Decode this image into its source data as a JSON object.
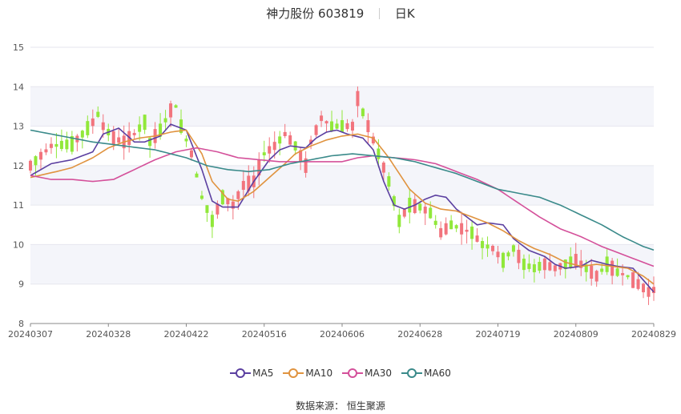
{
  "header": {
    "title": "神力股份 603819",
    "period": "日K"
  },
  "source": "数据来源： 恒生聚源",
  "colors": {
    "up": "#f2747d",
    "down": "#91e83a",
    "ma5": "#5b3fa0",
    "ma10": "#e0933f",
    "ma30": "#d4509a",
    "ma60": "#3a8a8a"
  },
  "chart_data": {
    "type": "candlestick",
    "ylim": [
      8,
      15
    ],
    "yticks": [
      8,
      9,
      10,
      11,
      12,
      13,
      14,
      15
    ],
    "xtick_labels": [
      "20240307",
      "20240328",
      "20240422",
      "20240516",
      "20240606",
      "20240628",
      "20240719",
      "20240809",
      "20240829"
    ],
    "xtick_index": [
      0,
      15,
      30,
      45,
      60,
      75,
      90,
      105,
      120
    ],
    "n": 121,
    "legend": [
      "MA5",
      "MA10",
      "MA30",
      "MA60"
    ],
    "series": [
      {
        "name": "MA5",
        "anchors": [
          [
            0,
            11.75
          ],
          [
            4,
            12.05
          ],
          [
            8,
            12.15
          ],
          [
            12,
            12.35
          ],
          [
            14,
            12.8
          ],
          [
            17,
            12.95
          ],
          [
            20,
            12.6
          ],
          [
            22,
            12.6
          ],
          [
            25,
            12.75
          ],
          [
            27,
            13.05
          ],
          [
            30,
            12.9
          ],
          [
            33,
            11.9
          ],
          [
            35,
            11.1
          ],
          [
            37,
            10.95
          ],
          [
            40,
            10.95
          ],
          [
            43,
            11.6
          ],
          [
            46,
            12.15
          ],
          [
            48,
            12.4
          ],
          [
            50,
            12.5
          ],
          [
            53,
            12.45
          ],
          [
            55,
            12.7
          ],
          [
            57,
            12.85
          ],
          [
            59,
            12.9
          ],
          [
            61,
            12.8
          ],
          [
            64,
            12.7
          ],
          [
            66,
            12.4
          ],
          [
            68,
            11.6
          ],
          [
            70,
            11.0
          ],
          [
            72,
            10.9
          ],
          [
            74,
            11.0
          ],
          [
            76,
            11.15
          ],
          [
            78,
            11.25
          ],
          [
            80,
            11.2
          ],
          [
            82,
            10.9
          ],
          [
            84,
            10.7
          ],
          [
            86,
            10.5
          ],
          [
            88,
            10.55
          ],
          [
            91,
            10.5
          ],
          [
            93,
            10.15
          ],
          [
            96,
            9.85
          ],
          [
            99,
            9.7
          ],
          [
            101,
            9.5
          ],
          [
            103,
            9.4
          ],
          [
            106,
            9.45
          ],
          [
            108,
            9.6
          ],
          [
            111,
            9.5
          ],
          [
            113,
            9.45
          ],
          [
            116,
            9.4
          ],
          [
            118,
            9.1
          ],
          [
            120,
            8.8
          ],
          [
            121,
            8.78
          ]
        ]
      },
      {
        "name": "MA10",
        "anchors": [
          [
            0,
            11.7
          ],
          [
            5,
            11.85
          ],
          [
            8,
            11.95
          ],
          [
            12,
            12.2
          ],
          [
            15,
            12.45
          ],
          [
            18,
            12.6
          ],
          [
            21,
            12.7
          ],
          [
            24,
            12.75
          ],
          [
            27,
            12.85
          ],
          [
            30,
            12.9
          ],
          [
            33,
            12.3
          ],
          [
            35,
            11.6
          ],
          [
            38,
            11.15
          ],
          [
            40,
            11.1
          ],
          [
            43,
            11.35
          ],
          [
            46,
            11.7
          ],
          [
            49,
            12.05
          ],
          [
            51,
            12.3
          ],
          [
            54,
            12.5
          ],
          [
            57,
            12.65
          ],
          [
            60,
            12.75
          ],
          [
            63,
            12.8
          ],
          [
            66,
            12.7
          ],
          [
            69,
            12.2
          ],
          [
            71,
            11.8
          ],
          [
            73,
            11.4
          ],
          [
            76,
            11.05
          ],
          [
            79,
            10.9
          ],
          [
            82,
            10.85
          ],
          [
            85,
            10.7
          ],
          [
            88,
            10.55
          ],
          [
            91,
            10.35
          ],
          [
            94,
            10.1
          ],
          [
            97,
            9.9
          ],
          [
            100,
            9.75
          ],
          [
            103,
            9.55
          ],
          [
            106,
            9.45
          ],
          [
            109,
            9.5
          ],
          [
            112,
            9.45
          ],
          [
            115,
            9.4
          ],
          [
            118,
            9.2
          ],
          [
            121,
            8.9
          ]
        ]
      },
      {
        "name": "MA30",
        "anchors": [
          [
            0,
            11.75
          ],
          [
            4,
            11.65
          ],
          [
            8,
            11.65
          ],
          [
            12,
            11.6
          ],
          [
            16,
            11.65
          ],
          [
            20,
            11.9
          ],
          [
            24,
            12.15
          ],
          [
            28,
            12.35
          ],
          [
            32,
            12.45
          ],
          [
            36,
            12.35
          ],
          [
            40,
            12.2
          ],
          [
            44,
            12.15
          ],
          [
            48,
            12.1
          ],
          [
            52,
            12.1
          ],
          [
            56,
            12.1
          ],
          [
            60,
            12.1
          ],
          [
            63,
            12.2
          ],
          [
            66,
            12.25
          ],
          [
            70,
            12.2
          ],
          [
            74,
            12.15
          ],
          [
            78,
            12.05
          ],
          [
            82,
            11.85
          ],
          [
            86,
            11.65
          ],
          [
            90,
            11.4
          ],
          [
            94,
            11.05
          ],
          [
            98,
            10.7
          ],
          [
            102,
            10.4
          ],
          [
            106,
            10.2
          ],
          [
            110,
            9.95
          ],
          [
            114,
            9.75
          ],
          [
            118,
            9.55
          ],
          [
            121,
            9.4
          ],
          [
            124,
            9.3
          ],
          [
            127,
            9.25
          ]
        ]
      },
      {
        "name": "MA60",
        "anchors": [
          [
            0,
            12.9
          ],
          [
            6,
            12.75
          ],
          [
            12,
            12.6
          ],
          [
            18,
            12.5
          ],
          [
            24,
            12.4
          ],
          [
            30,
            12.2
          ],
          [
            34,
            12.0
          ],
          [
            38,
            11.9
          ],
          [
            42,
            11.85
          ],
          [
            46,
            11.9
          ],
          [
            50,
            12.05
          ],
          [
            54,
            12.15
          ],
          [
            58,
            12.25
          ],
          [
            62,
            12.3
          ],
          [
            66,
            12.25
          ],
          [
            70,
            12.2
          ],
          [
            74,
            12.1
          ],
          [
            78,
            11.95
          ],
          [
            82,
            11.8
          ],
          [
            86,
            11.6
          ],
          [
            90,
            11.4
          ],
          [
            94,
            11.3
          ],
          [
            98,
            11.2
          ],
          [
            102,
            11.0
          ],
          [
            106,
            10.75
          ],
          [
            110,
            10.5
          ],
          [
            114,
            10.2
          ],
          [
            118,
            9.95
          ],
          [
            121,
            9.82
          ]
        ]
      }
    ],
    "candle_anchors": [
      [
        0,
        12.0
      ],
      [
        4,
        12.5
      ],
      [
        8,
        12.55
      ],
      [
        10,
        12.8
      ],
      [
        12,
        13.1
      ],
      [
        13,
        13.3
      ],
      [
        14,
        13.0
      ],
      [
        16,
        12.7
      ],
      [
        18,
        12.6
      ],
      [
        20,
        12.8
      ],
      [
        22,
        13.1
      ],
      [
        23,
        12.6
      ],
      [
        25,
        12.9
      ],
      [
        27,
        13.4
      ],
      [
        28,
        13.5
      ],
      [
        29,
        13.0
      ],
      [
        31,
        12.3
      ],
      [
        33,
        11.2
      ],
      [
        35,
        10.6
      ],
      [
        37,
        11.2
      ],
      [
        39,
        11.0
      ],
      [
        41,
        11.5
      ],
      [
        43,
        11.6
      ],
      [
        45,
        12.3
      ],
      [
        47,
        12.5
      ],
      [
        49,
        12.8
      ],
      [
        51,
        12.5
      ],
      [
        53,
        12.0
      ],
      [
        54,
        12.6
      ],
      [
        56,
        13.2
      ],
      [
        58,
        13.0
      ],
      [
        60,
        13.0
      ],
      [
        62,
        13.0
      ],
      [
        63,
        13.7
      ],
      [
        65,
        13.0
      ],
      [
        67,
        12.3
      ],
      [
        69,
        11.6
      ],
      [
        71,
        10.6
      ],
      [
        73,
        11.0
      ],
      [
        75,
        10.95
      ],
      [
        77,
        10.8
      ],
      [
        79,
        10.3
      ],
      [
        81,
        10.5
      ],
      [
        83,
        10.4
      ],
      [
        85,
        10.3
      ],
      [
        87,
        10.0
      ],
      [
        89,
        9.9
      ],
      [
        91,
        9.6
      ],
      [
        93,
        9.9
      ],
      [
        95,
        9.5
      ],
      [
        97,
        9.4
      ],
      [
        99,
        9.5
      ],
      [
        101,
        9.4
      ],
      [
        103,
        9.5
      ],
      [
        105,
        9.6
      ],
      [
        107,
        9.4
      ],
      [
        109,
        9.2
      ],
      [
        111,
        9.5
      ],
      [
        113,
        9.3
      ],
      [
        115,
        9.2
      ],
      [
        117,
        9.0
      ],
      [
        119,
        8.8
      ],
      [
        121,
        8.9
      ]
    ]
  }
}
